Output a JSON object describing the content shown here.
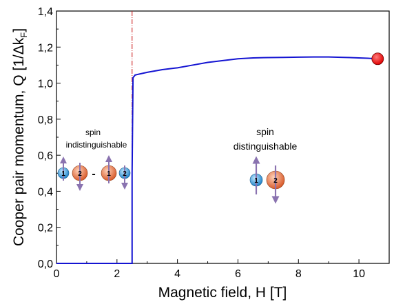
{
  "chart_data": {
    "type": "line",
    "xlabel": "Magnetic field, H [T]",
    "ylabel": "Cooper pair momentum, Q [1/Δk",
    "ylabel_subscript": "F",
    "ylabel_close": "]",
    "xlim": [
      0,
      11
    ],
    "ylim": [
      0,
      1.4
    ],
    "x_ticks": [
      0,
      2,
      4,
      6,
      8,
      10
    ],
    "x_tick_labels": [
      "0",
      "2",
      "4",
      "6",
      "8",
      "10"
    ],
    "y_ticks": [
      0,
      0.2,
      0.4,
      0.6,
      0.8,
      1.0,
      1.2,
      1.4
    ],
    "y_tick_labels": [
      "0,0",
      "0,2",
      "0,4",
      "0,6",
      "0,8",
      "1,0",
      "1,2",
      "1,4"
    ],
    "grid": false,
    "series": [
      {
        "color": "#1414d2",
        "x": [
          0,
          2.5,
          2.5,
          2.53,
          2.6,
          3.0,
          3.5,
          4.0,
          4.5,
          5.0,
          5.5,
          6.0,
          6.5,
          7.0,
          7.5,
          8.0,
          8.5,
          9.0,
          9.5,
          10.0,
          10.3,
          10.55
        ],
        "y": [
          0,
          0,
          0.5,
          1.03,
          1.045,
          1.06,
          1.075,
          1.085,
          1.1,
          1.115,
          1.125,
          1.135,
          1.14,
          1.142,
          1.143,
          1.144,
          1.145,
          1.145,
          1.143,
          1.14,
          1.138,
          1.135
        ]
      }
    ],
    "endpoint_marker": {
      "x": 10.62,
      "y": 1.135,
      "color": "#ff0000"
    },
    "vline": {
      "x": 2.5,
      "color": "#c81414"
    },
    "annotations": {
      "left": {
        "line1": "spin",
        "line2": "indistinguishable",
        "separator": "-"
      },
      "right": {
        "line1": "spin",
        "line2": "distinguishable"
      },
      "ball_labels": {
        "one": "1",
        "two": "2"
      }
    },
    "colors": {
      "particle1": "#3aa0dc",
      "particle2": "#e8784a",
      "spin_arrow": "#8a73b0"
    }
  }
}
